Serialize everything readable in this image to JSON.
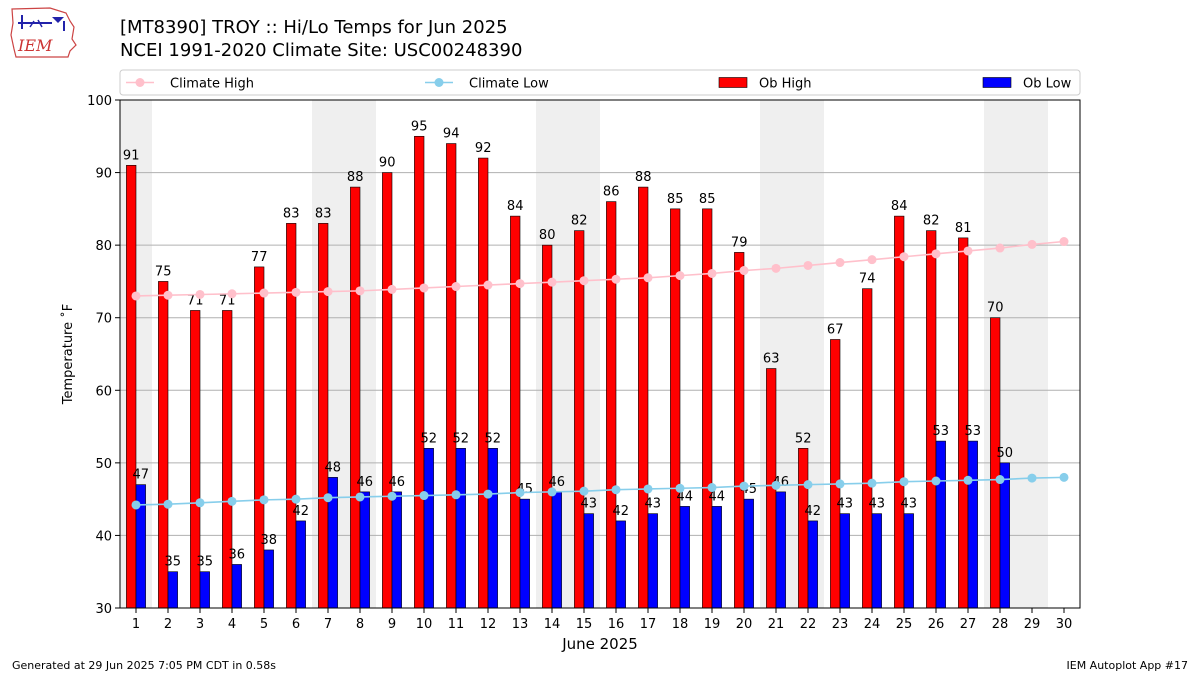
{
  "logo_text": "IEM",
  "title_line1": "[MT8390] TROY :: Hi/Lo Temps for Jun 2025",
  "title_line2": "NCEI 1991-2020 Climate Site: USC00248390",
  "footer_left": "Generated at 29 Jun 2025 7:05 PM CDT in 0.58s",
  "footer_right": "IEM Autoplot App #17",
  "colors": {
    "ob_high": "#ff0000",
    "ob_low": "#0000ff",
    "climate_high": "#ffc0cb",
    "climate_low": "#87ceeb",
    "weekend_band": "#efefef",
    "grid": "#b0b0b0"
  },
  "chart_data": {
    "type": "bar",
    "xlabel": "June 2025",
    "ylabel": "Temperature ˚F",
    "ylim": [
      30,
      100
    ],
    "yticks": [
      30,
      40,
      50,
      60,
      70,
      80,
      90,
      100
    ],
    "grid": "horizontal",
    "legend_position": "top",
    "x": [
      1,
      2,
      3,
      4,
      5,
      6,
      7,
      8,
      9,
      10,
      11,
      12,
      13,
      14,
      15,
      16,
      17,
      18,
      19,
      20,
      21,
      22,
      23,
      24,
      25,
      26,
      27,
      28,
      29,
      30
    ],
    "weekend_bands": [
      [
        1,
        1
      ],
      [
        7,
        8
      ],
      [
        14,
        15
      ],
      [
        21,
        22
      ],
      [
        28,
        29
      ]
    ],
    "series": [
      {
        "name": "Climate High",
        "kind": "line",
        "values": [
          73.0,
          73.1,
          73.2,
          73.3,
          73.4,
          73.5,
          73.6,
          73.7,
          73.9,
          74.1,
          74.3,
          74.5,
          74.7,
          74.9,
          75.1,
          75.3,
          75.5,
          75.8,
          76.1,
          76.5,
          76.8,
          77.2,
          77.6,
          78.0,
          78.4,
          78.8,
          79.2,
          79.6,
          80.1,
          80.5
        ]
      },
      {
        "name": "Climate Low",
        "kind": "line",
        "values": [
          44.2,
          44.3,
          44.5,
          44.7,
          44.9,
          45.0,
          45.2,
          45.3,
          45.4,
          45.5,
          45.6,
          45.7,
          45.9,
          46.0,
          46.1,
          46.3,
          46.4,
          46.5,
          46.6,
          46.8,
          46.9,
          47.0,
          47.1,
          47.2,
          47.4,
          47.5,
          47.6,
          47.7,
          47.9,
          48.0
        ]
      },
      {
        "name": "Ob High",
        "kind": "bar",
        "values": [
          91,
          75,
          71,
          71,
          77,
          83,
          83,
          88,
          90,
          95,
          94,
          92,
          84,
          80,
          82,
          86,
          88,
          85,
          85,
          79,
          63,
          52,
          67,
          74,
          84,
          82,
          81,
          70,
          null,
          null
        ]
      },
      {
        "name": "Ob Low",
        "kind": "bar",
        "values": [
          47,
          35,
          35,
          36,
          38,
          42,
          48,
          46,
          46,
          52,
          52,
          52,
          45,
          46,
          43,
          42,
          43,
          44,
          44,
          45,
          46,
          42,
          43,
          43,
          43,
          53,
          53,
          50,
          null,
          null
        ]
      }
    ]
  }
}
